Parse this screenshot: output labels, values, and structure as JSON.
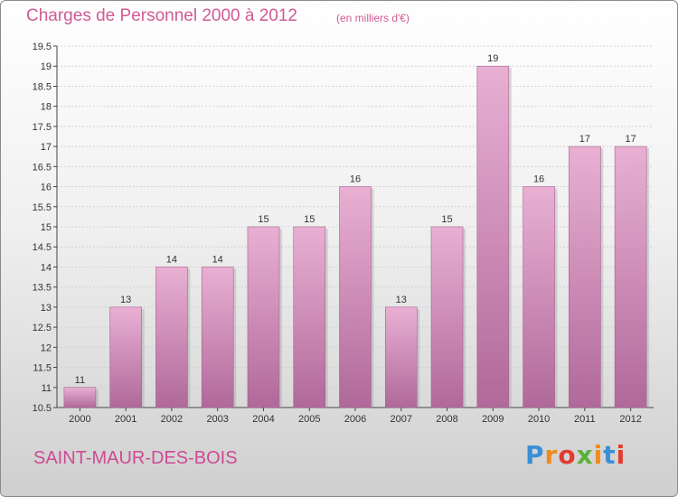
{
  "header": {
    "title": "Charges de Personnel 2000 à 2012",
    "subtitle": "(en milliers d'€)"
  },
  "footer": {
    "commune": "SAINT-MAUR-DES-BOIS",
    "logo_text": "Proxiti",
    "logo_colors": [
      "#3a8fd6",
      "#f08a1c",
      "#e33b2f",
      "#5ab23a",
      "#f08a1c",
      "#3a8fd6",
      "#e33b2f"
    ]
  },
  "chart_data": {
    "type": "bar",
    "title": "Charges de Personnel 2000 à 2012",
    "subtitle": "(en milliers d'€)",
    "categories": [
      "2000",
      "2001",
      "2002",
      "2003",
      "2004",
      "2005",
      "2006",
      "2007",
      "2008",
      "2009",
      "2010",
      "2011",
      "2012"
    ],
    "values": [
      11,
      13,
      14,
      14,
      15,
      15,
      16,
      13,
      15,
      19,
      16,
      17,
      17
    ],
    "ylim": [
      10.5,
      19.5
    ],
    "yticks": [
      "10.5",
      "11",
      "11.5",
      "12",
      "12.5",
      "13",
      "13.5",
      "14",
      "14.5",
      "15",
      "15.5",
      "16",
      "16.5",
      "17",
      "17.5",
      "18",
      "18.5",
      "19",
      "19.5"
    ],
    "bar_color": "#e7a9cd",
    "bar_color_dark": "#b16d9a",
    "grid": true,
    "xlabel": "",
    "ylabel": ""
  }
}
